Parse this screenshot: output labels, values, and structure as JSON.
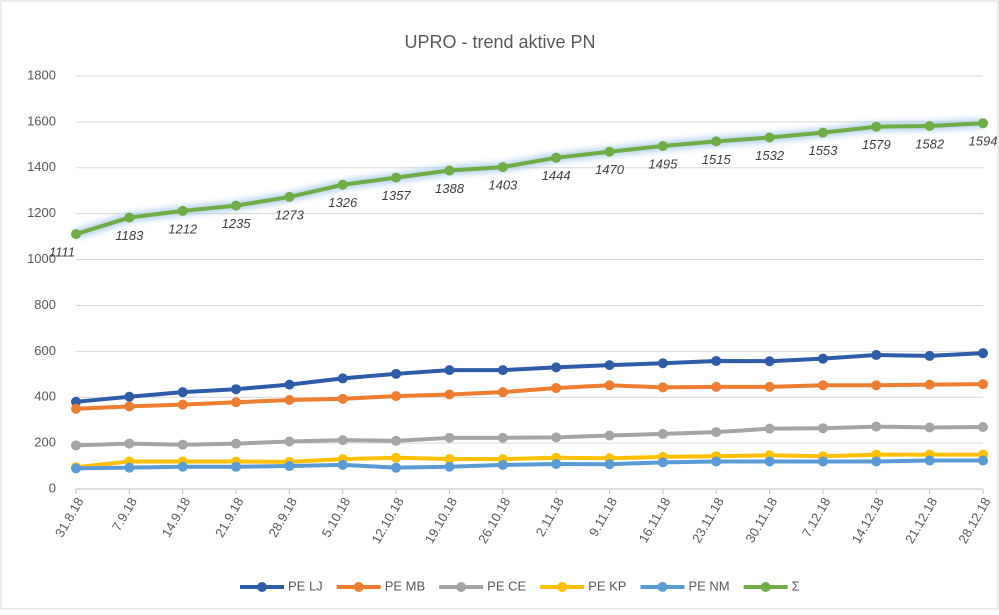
{
  "chart_data": {
    "type": "line",
    "title": "UPRO - trend aktive PN",
    "categories": [
      "31.8.18",
      "7.9.18",
      "14.9.18",
      "21.9.18",
      "28.9.18",
      "5.10.18",
      "12.10.18",
      "19.10.18",
      "26.10.18",
      "2.11.18",
      "9.11.18",
      "16.11.18",
      "23.11.18",
      "30.11.18",
      "7.12.18",
      "14.12.18",
      "21.12.18",
      "28.12.18"
    ],
    "series": [
      {
        "name": "PE LJ",
        "color": "#2f5ca8",
        "values": [
          380,
          402,
          422,
          435,
          455,
          482,
          502,
          518,
          518,
          530,
          540,
          548,
          558,
          557,
          568,
          584,
          580,
          592
        ]
      },
      {
        "name": "PE MB",
        "color": "#ed7d31",
        "values": [
          350,
          360,
          368,
          378,
          388,
          393,
          405,
          412,
          422,
          440,
          452,
          443,
          445,
          445,
          452,
          452,
          455,
          457
        ]
      },
      {
        "name": "PE CE",
        "color": "#a5a5a5",
        "values": [
          190,
          198,
          193,
          198,
          207,
          213,
          210,
          223,
          223,
          225,
          233,
          240,
          248,
          263,
          265,
          272,
          268,
          270
        ]
      },
      {
        "name": "PE KP",
        "color": "#ffc000",
        "values": [
          95,
          120,
          120,
          120,
          118,
          130,
          136,
          131,
          130,
          136,
          134,
          140,
          143,
          147,
          143,
          150,
          150,
          150
        ]
      },
      {
        "name": "PE NM",
        "color": "#5b9bd5",
        "values": [
          90,
          93,
          97,
          97,
          100,
          105,
          93,
          97,
          105,
          109,
          108,
          116,
          120,
          120,
          120,
          120,
          124,
          124
        ]
      },
      {
        "name": "Σ",
        "color": "#70ad47",
        "values": [
          1111,
          1183,
          1212,
          1235,
          1273,
          1326,
          1357,
          1388,
          1403,
          1444,
          1470,
          1495,
          1515,
          1532,
          1553,
          1579,
          1582,
          1594
        ],
        "data_labels": true
      }
    ],
    "ylim": [
      0,
      1800
    ],
    "yticks": [
      0,
      200,
      400,
      600,
      800,
      1000,
      1200,
      1400,
      1600,
      1800
    ],
    "grid": true,
    "legend": "bottom"
  }
}
